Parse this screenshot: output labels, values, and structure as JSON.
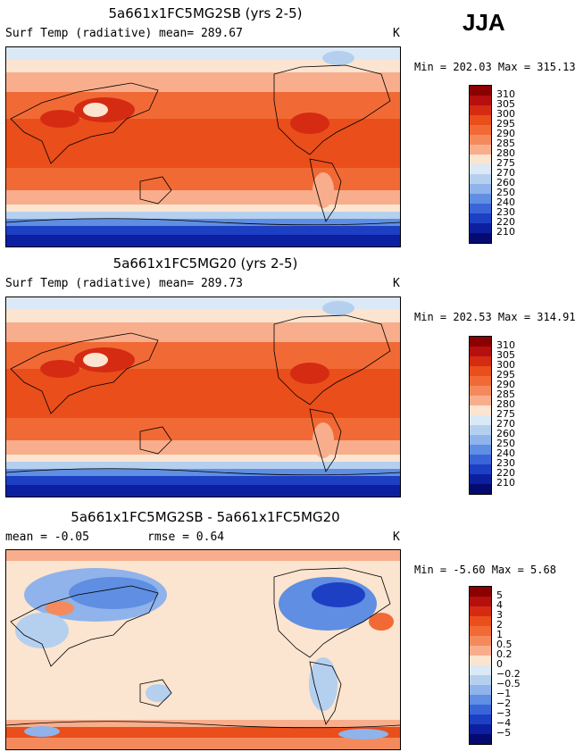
{
  "season": "JJA",
  "panels": [
    {
      "title": "5a661x1FC5MG2SB (yrs 2-5)",
      "variable": "Surf Temp (radiative)",
      "stat1": "mean= 289.67",
      "stat2": "",
      "units": "K",
      "minmax": "Min = 202.03 Max = 315.13",
      "levels": [
        "310",
        "305",
        "300",
        "295",
        "290",
        "285",
        "280",
        "275",
        "270",
        "260",
        "250",
        "240",
        "230",
        "220",
        "210"
      ],
      "colors": [
        "#8b0000",
        "#b50f0f",
        "#d52b12",
        "#ea4e1b",
        "#f16a35",
        "#f48a5c",
        "#f8ae8c",
        "#fbe4d0",
        "#dbe9f6",
        "#b5d0ef",
        "#8fb3ea",
        "#5f8ee2",
        "#3a65d8",
        "#1d3fc4",
        "#0c1fa0",
        "#040a70"
      ],
      "type": "abs"
    },
    {
      "title": "5a661x1FC5MG20 (yrs 2-5)",
      "variable": "Surf Temp (radiative)",
      "stat1": "mean= 289.73",
      "stat2": "",
      "units": "K",
      "minmax": "Min = 202.53 Max = 314.91",
      "levels": [
        "310",
        "305",
        "300",
        "295",
        "290",
        "285",
        "280",
        "275",
        "270",
        "260",
        "250",
        "240",
        "230",
        "220",
        "210"
      ],
      "colors": [
        "#8b0000",
        "#b50f0f",
        "#d52b12",
        "#ea4e1b",
        "#f16a35",
        "#f48a5c",
        "#f8ae8c",
        "#fbe4d0",
        "#dbe9f6",
        "#b5d0ef",
        "#8fb3ea",
        "#5f8ee2",
        "#3a65d8",
        "#1d3fc4",
        "#0c1fa0",
        "#040a70"
      ],
      "type": "abs"
    },
    {
      "title": "5a661x1FC5MG2SB - 5a661x1FC5MG20",
      "variable": "",
      "stat1": "mean =  -0.05",
      "stat2": "rmse =   0.64",
      "units": "K",
      "minmax": "Min =  -5.60 Max =   5.68",
      "levels": [
        "5",
        "4",
        "3",
        "2",
        "1",
        "0.5",
        "0.2",
        "0",
        "−0.2",
        "−0.5",
        "−1",
        "−2",
        "−3",
        "−4",
        "−5"
      ],
      "colors": [
        "#8b0000",
        "#b50f0f",
        "#d52b12",
        "#ea4e1b",
        "#f16a35",
        "#f48a5c",
        "#f8ae8c",
        "#fbe4d0",
        "#dbe9f6",
        "#b5d0ef",
        "#8fb3ea",
        "#5f8ee2",
        "#3a65d8",
        "#1d3fc4",
        "#0c1fa0",
        "#040a70"
      ],
      "type": "diff"
    }
  ]
}
